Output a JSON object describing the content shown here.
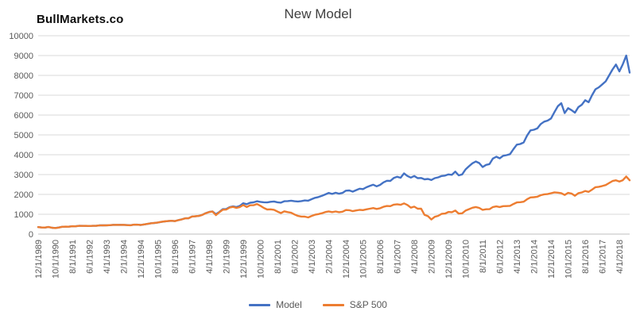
{
  "page": {
    "logo": "BullMarkets.co"
  },
  "chart_data": {
    "type": "line",
    "title": "New Model",
    "xlabel": "",
    "ylabel": "",
    "ylim": [
      0,
      10000
    ],
    "y_ticks": [
      0,
      1000,
      2000,
      3000,
      4000,
      5000,
      6000,
      7000,
      8000,
      9000,
      10000
    ],
    "grid": "horizontal",
    "legend_position": "bottom",
    "axis_color": "#bfbfbf",
    "grid_color": "#d9d9d9",
    "tick_text_color": "#595959",
    "x_start_label": "12/1/1989",
    "x_tick_interval_months": 10,
    "sample_step_months": 2,
    "total_months": 346,
    "x_tick_labels": [
      "12/1/1989",
      "10/1/1990",
      "8/1/1991",
      "6/1/1992",
      "4/1/1993",
      "2/1/1994",
      "12/1/1994",
      "10/1/1995",
      "8/1/1996",
      "6/1/1997",
      "4/1/1998",
      "2/1/1999",
      "12/1/1999",
      "10/1/2000",
      "8/1/2001",
      "6/1/2002",
      "4/1/2003",
      "2/1/2004",
      "12/1/2004",
      "10/1/2005",
      "8/1/2006",
      "6/1/2007",
      "4/1/2008",
      "2/1/2009",
      "12/1/2009",
      "10/1/2010",
      "8/1/2011",
      "6/1/2012",
      "4/1/2013",
      "2/1/2014",
      "12/1/2014",
      "10/1/2015",
      "8/1/2016",
      "6/1/2017",
      "4/1/2018"
    ],
    "series": [
      {
        "name": "Model",
        "color": "#4472c4",
        "values": [
          353,
          334,
          328,
          360,
          320,
          307,
          333,
          370,
          372,
          374,
          392,
          395,
          414,
          416,
          412,
          410,
          417,
          416,
          439,
          440,
          443,
          448,
          467,
          465,
          469,
          464,
          454,
          447,
          472,
          475,
          456,
          490,
          512,
          548,
          559,
          585,
          613,
          637,
          657,
          668,
          655,
          702,
          744,
          794,
          798,
          888,
          896,
          918,
          967,
          1055,
          1118,
          1140,
          1005,
          1115,
          1255,
          1265,
          1360,
          1400,
          1365,
          1420,
          1555,
          1510,
          1580,
          1600,
          1655,
          1625,
          1605,
          1595,
          1630,
          1645,
          1605,
          1585,
          1655,
          1665,
          1685,
          1655,
          1645,
          1665,
          1695,
          1685,
          1760,
          1830,
          1870,
          1930,
          2000,
          2075,
          2025,
          2085,
          2035,
          2075,
          2190,
          2200,
          2140,
          2215,
          2290,
          2270,
          2360,
          2430,
          2490,
          2410,
          2480,
          2610,
          2690,
          2680,
          2830,
          2890,
          2840,
          3060,
          2930,
          2850,
          2930,
          2820,
          2830,
          2760,
          2780,
          2730,
          2820,
          2860,
          2930,
          2950,
          3010,
          2990,
          3150,
          2960,
          3010,
          3260,
          3420,
          3570,
          3660,
          3580,
          3380,
          3490,
          3530,
          3810,
          3900,
          3820,
          3950,
          3980,
          4030,
          4280,
          4510,
          4540,
          4620,
          4970,
          5230,
          5260,
          5330,
          5550,
          5670,
          5720,
          5830,
          6150,
          6450,
          6600,
          6100,
          6350,
          6250,
          6120,
          6400,
          6520,
          6750,
          6650,
          7000,
          7300,
          7400,
          7550,
          7700,
          8000,
          8300,
          8550,
          8200,
          8560,
          9000,
          8140
        ]
      },
      {
        "name": "S&P 500",
        "color": "#ed7d31",
        "values": [
          353,
          332,
          331,
          358,
          323,
          304,
          330,
          367,
          375,
          371,
          395,
          392,
          417,
          413,
          415,
          408,
          414,
          419,
          436,
          443,
          440,
          451,
          464,
          468,
          466,
          467,
          451,
          444,
          475,
          472,
          459,
          487,
          515,
          545,
          562,
          582,
          616,
          640,
          654,
          671,
          652,
          705,
          741,
          791,
          801,
          885,
          899,
          915,
          970,
          1049,
          1112,
          1134,
          957,
          1099,
          1229,
          1238,
          1335,
          1373,
          1320,
          1363,
          1469,
          1366,
          1452,
          1455,
          1518,
          1429,
          1320,
          1240,
          1249,
          1224,
          1134,
          1060,
          1148,
          1107,
          1077,
          990,
          916,
          886,
          880,
          841,
          917,
          975,
          1008,
          1051,
          1112,
          1145,
          1107,
          1141,
          1104,
          1130,
          1212,
          1204,
          1157,
          1191,
          1220,
          1207,
          1248,
          1281,
          1311,
          1270,
          1304,
          1378,
          1418,
          1407,
          1482,
          1503,
          1474,
          1549,
          1468,
          1331,
          1386,
          1280,
          1283,
          969,
          903,
          735,
          873,
          919,
          1021,
          1036,
          1115,
          1104,
          1187,
          1031,
          1049,
          1183,
          1258,
          1327,
          1364,
          1321,
          1219,
          1253,
          1258,
          1366,
          1398,
          1362,
          1407,
          1412,
          1426,
          1515,
          1598,
          1606,
          1633,
          1757,
          1848,
          1859,
          1884,
          1960,
          2003,
          2018,
          2059,
          2105,
          2086,
          2063,
          1972,
          2079,
          2044,
          1932,
          2065,
          2099,
          2171,
          2126,
          2239,
          2364,
          2384,
          2423,
          2472,
          2575,
          2674,
          2714,
          2648,
          2718,
          2902,
          2712
        ]
      }
    ]
  }
}
